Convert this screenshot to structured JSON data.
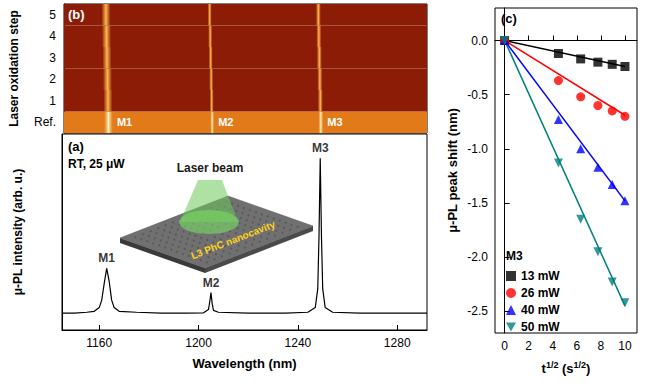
{
  "chart_data": [
    {
      "type": "heatmap",
      "title": "(b)",
      "y_label": "Laser oxidation step",
      "rows": [
        "Ref.",
        "1",
        "2",
        "3",
        "4",
        "5"
      ],
      "peak_labels": [
        "M1",
        "M2",
        "M3"
      ],
      "peaks": [
        [
          1163,
          1205,
          1249
        ],
        [
          1162.8,
          1204.8,
          1248.8
        ],
        [
          1162.6,
          1204.6,
          1248.6
        ],
        [
          1162.4,
          1204.4,
          1248.4
        ],
        [
          1162.2,
          1204.2,
          1248.2
        ],
        [
          1162,
          1204,
          1248
        ]
      ],
      "xlim": [
        1145,
        1292
      ],
      "tick_labels": "y"
    },
    {
      "type": "line",
      "title": "(a)",
      "x_label": "Wavelength (nm)",
      "y_label": "μ-PL intensity (arb. u.)",
      "note": "RT, 25 μW",
      "inset": {
        "beam_label": "Laser beam",
        "sample_label": "L3 PhC nanocavity"
      },
      "x": [
        1145,
        1150,
        1155,
        1158,
        1160,
        1161,
        1162,
        1163,
        1164,
        1165,
        1166,
        1168,
        1175,
        1185,
        1195,
        1202,
        1204,
        1204.5,
        1205,
        1205.5,
        1206,
        1208,
        1220,
        1235,
        1244,
        1247,
        1248,
        1248.5,
        1249,
        1249.5,
        1250,
        1251,
        1254,
        1265,
        1280,
        1292
      ],
      "values": [
        0.09,
        0.09,
        0.095,
        0.1,
        0.12,
        0.16,
        0.25,
        0.33,
        0.26,
        0.16,
        0.12,
        0.1,
        0.095,
        0.09,
        0.09,
        0.092,
        0.11,
        0.15,
        0.2,
        0.14,
        0.105,
        0.095,
        0.09,
        0.09,
        0.095,
        0.12,
        0.22,
        0.5,
        0.92,
        0.5,
        0.22,
        0.12,
        0.095,
        0.09,
        0.09,
        0.09
      ],
      "color": "#000000",
      "annotations": [
        {
          "text": "M1",
          "x": 1163,
          "y": 0.33
        },
        {
          "text": "M2",
          "x": 1205,
          "y": 0.2
        },
        {
          "text": "M3",
          "x": 1249,
          "y": 0.92
        }
      ],
      "xlim": [
        1145,
        1292
      ],
      "xticks": [
        1160,
        1200,
        1240,
        1280
      ],
      "ylim": [
        0,
        1.05
      ],
      "tick_labels": "x",
      "grid": false
    },
    {
      "type": "scatter",
      "title": "(c)",
      "y_label": "μ-PL peak shift (nm)",
      "x_label": [
        {
          "text": "t"
        },
        {
          "text": "1/2",
          "sup": true
        },
        {
          "text": " (s"
        },
        {
          "text": "1/2",
          "sup": true
        },
        {
          "text": ")"
        }
      ],
      "legend_title": "M3",
      "legend": "bottom-left",
      "x": [
        0,
        4.47,
        6.32,
        7.75,
        8.94,
        10
      ],
      "fit_x": [
        0,
        10
      ],
      "series": [
        {
          "name": "13 mW",
          "color": "#000000",
          "marker": "square",
          "values": [
            0,
            -0.12,
            -0.17,
            -0.2,
            -0.22,
            -0.24
          ],
          "fit": [
            0,
            -0.24
          ]
        },
        {
          "name": "26 mW",
          "color": "#ff0000",
          "marker": "circle",
          "values": [
            0,
            -0.37,
            -0.52,
            -0.6,
            -0.65,
            -0.7
          ],
          "fit": [
            0,
            -0.69
          ]
        },
        {
          "name": "40 mW",
          "color": "#0000ff",
          "marker": "triangle-up",
          "values": [
            0,
            -0.73,
            -1.0,
            -1.17,
            -1.33,
            -1.48
          ],
          "fit": [
            0,
            -1.48
          ]
        },
        {
          "name": "50 mW",
          "color": "#008080",
          "marker": "triangle-down",
          "values": [
            0,
            -1.13,
            -1.65,
            -1.95,
            -2.23,
            -2.42
          ],
          "fit": [
            0,
            -2.45
          ]
        }
      ],
      "xlim": [
        -0.8,
        11
      ],
      "xticks": [
        0,
        2,
        4,
        6,
        8,
        10
      ],
      "ylim": [
        -2.7,
        0.3
      ],
      "yticks": [
        {
          "value": 0,
          "label": "0.0"
        },
        -0.5,
        {
          "value": -1,
          "label": "-1.0"
        },
        -1.5,
        {
          "value": -2,
          "label": "-2.0"
        },
        -2.5
      ],
      "grid": false
    }
  ]
}
